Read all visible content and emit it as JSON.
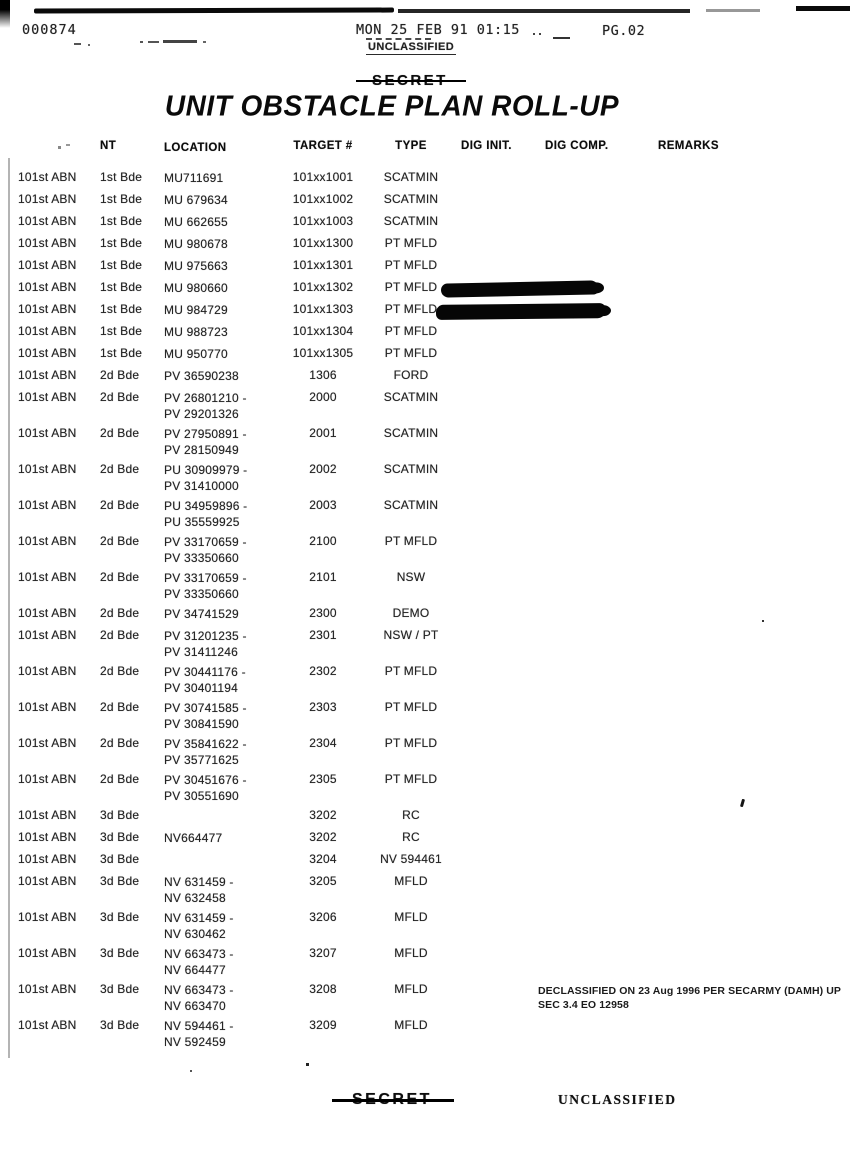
{
  "header": {
    "doc_number": "000874",
    "datetime": "MON 25 FEB 91 01:15",
    "page_number": "PG.02",
    "unclassified_label": "UNCLASSIFIED",
    "secret_label": "SECRET"
  },
  "title": "UNIT OBSTACLE PLAN ROLL-UP",
  "table": {
    "headers": {
      "unit_nt": "NT",
      "location": "LOCATION",
      "target": "TARGET #",
      "type": "TYPE",
      "dig_init": "DIG INIT.",
      "dig_comp": "DIG COMP.",
      "remarks": "REMARKS"
    },
    "rows": [
      {
        "unit": "101st ABN",
        "bde": "1st Bde",
        "loc": [
          "MU711691"
        ],
        "target": "101xx1001",
        "type": "SCATMIN"
      },
      {
        "unit": "101st ABN",
        "bde": "1st Bde",
        "loc": [
          "MU 679634"
        ],
        "target": "101xx1002",
        "type": "SCATMIN"
      },
      {
        "unit": "101st ABN",
        "bde": "1st Bde",
        "loc": [
          "MU 662655"
        ],
        "target": "101xx1003",
        "type": "SCATMIN"
      },
      {
        "unit": "101st ABN",
        "bde": "1st Bde",
        "loc": [
          "MU 980678"
        ],
        "target": "101xx1300",
        "type": "PT MFLD"
      },
      {
        "unit": "101st ABN",
        "bde": "1st Bde",
        "loc": [
          "MU 975663"
        ],
        "target": "101xx1301",
        "type": "PT MFLD"
      },
      {
        "unit": "101st ABN",
        "bde": "1st Bde",
        "loc": [
          "MU 980660"
        ],
        "target": "101xx1302",
        "type": "PT MFLD",
        "redact": "r1"
      },
      {
        "unit": "101st ABN",
        "bde": "1st Bde",
        "loc": [
          "MU 984729"
        ],
        "target": "101xx1303",
        "type": "PT MFLD",
        "redact": "r2"
      },
      {
        "unit": "101st ABN",
        "bde": "1st Bde",
        "loc": [
          "MU 988723"
        ],
        "target": "101xx1304",
        "type": "PT MFLD"
      },
      {
        "unit": "101st ABN",
        "bde": "1st Bde",
        "loc": [
          "MU 950770"
        ],
        "target": "101xx1305",
        "type": "PT MFLD"
      },
      {
        "unit": "101st ABN",
        "bde": "2d Bde",
        "loc": [
          "PV 36590238"
        ],
        "target": "1306",
        "type": "FORD"
      },
      {
        "unit": "101st ABN",
        "bde": "2d Bde",
        "loc": [
          "PV 26801210 -",
          "PV 29201326"
        ],
        "target": "2000",
        "type": "SCATMIN"
      },
      {
        "unit": "101st ABN",
        "bde": "2d Bde",
        "loc": [
          "PV 27950891 -",
          "PV 28150949"
        ],
        "target": "2001",
        "type": "SCATMIN"
      },
      {
        "unit": "101st ABN",
        "bde": "2d Bde",
        "loc": [
          "PU 30909979 -",
          "PV 31410000"
        ],
        "target": "2002",
        "type": "SCATMIN"
      },
      {
        "unit": "101st ABN",
        "bde": "2d Bde",
        "loc": [
          "PU 34959896 -",
          "PU 35559925"
        ],
        "target": "2003",
        "type": "SCATMIN"
      },
      {
        "unit": "101st ABN",
        "bde": "2d Bde",
        "loc": [
          "PV 33170659 -",
          "PV 33350660"
        ],
        "target": "2100",
        "type": "PT MFLD"
      },
      {
        "unit": "101st ABN",
        "bde": "2d Bde",
        "loc": [
          "PV 33170659 -",
          "PV 33350660"
        ],
        "target": "2101",
        "type": "NSW"
      },
      {
        "unit": "101st ABN",
        "bde": "2d Bde",
        "loc": [
          "PV 34741529"
        ],
        "target": "2300",
        "type": "DEMO"
      },
      {
        "unit": "101st ABN",
        "bde": "2d Bde",
        "loc": [
          "PV 31201235 -",
          "PV 31411246"
        ],
        "target": "2301",
        "type": "NSW / PT"
      },
      {
        "unit": "101st ABN",
        "bde": "2d Bde",
        "loc": [
          "PV 30441176 -",
          "PV 30401194"
        ],
        "target": "2302",
        "type": "PT MFLD"
      },
      {
        "unit": "101st ABN",
        "bde": "2d Bde",
        "loc": [
          "PV 30741585 -",
          "PV 30841590"
        ],
        "target": "2303",
        "type": "PT MFLD"
      },
      {
        "unit": "101st ABN",
        "bde": "2d Bde",
        "loc": [
          "PV 35841622 -",
          "PV 35771625"
        ],
        "target": "2304",
        "type": "PT MFLD"
      },
      {
        "unit": "101st ABN",
        "bde": "2d Bde",
        "loc": [
          "PV 30451676 -",
          "PV 30551690"
        ],
        "target": "2305",
        "type": "PT MFLD"
      },
      {
        "unit": "101st ABN",
        "bde": "3d Bde",
        "loc": [
          ""
        ],
        "target": "3202",
        "type": "RC"
      },
      {
        "unit": "101st ABN",
        "bde": "3d Bde",
        "loc": [
          "NV664477"
        ],
        "target": "3202",
        "type": "RC"
      },
      {
        "unit": "101st ABN",
        "bde": "3d Bde",
        "loc": [
          ""
        ],
        "target": "3204",
        "type": "NV 594461"
      },
      {
        "unit": "101st ABN",
        "bde": "3d Bde",
        "loc": [
          "NV 631459 -",
          "NV 632458"
        ],
        "target": "3205",
        "type": "MFLD"
      },
      {
        "unit": "101st ABN",
        "bde": "3d Bde",
        "loc": [
          "NV 631459 -",
          "NV 630462"
        ],
        "target": "3206",
        "type": "MFLD"
      },
      {
        "unit": "101st ABN",
        "bde": "3d Bde",
        "loc": [
          "NV 663473 -",
          "NV 664477"
        ],
        "target": "3207",
        "type": "MFLD"
      },
      {
        "unit": "101st ABN",
        "bde": "3d Bde",
        "loc": [
          "NV 663473 -",
          "NV 663470"
        ],
        "target": "3208",
        "type": "MFLD"
      },
      {
        "unit": "101st ABN",
        "bde": "3d Bde",
        "loc": [
          "NV 594461 -",
          "NV 592459"
        ],
        "target": "3209",
        "type": "MFLD"
      }
    ]
  },
  "declassified_note": {
    "line1": "DECLASSIFIED ON 23 Aug 1996 PER SECARMY (DAMH) UP",
    "line2": "SEC 3.4 EO 12958"
  },
  "footer": {
    "secret_label": "SECRET",
    "unclassified_label": "UNCLASSIFIED"
  }
}
